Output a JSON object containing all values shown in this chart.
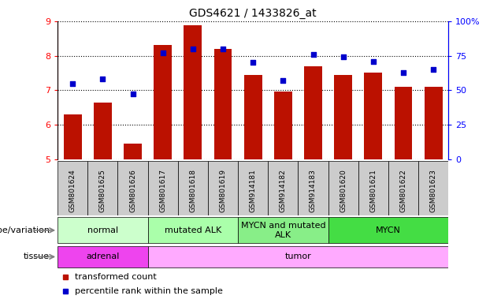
{
  "title": "GDS4621 / 1433826_at",
  "samples": [
    "GSM801624",
    "GSM801625",
    "GSM801626",
    "GSM801617",
    "GSM801618",
    "GSM801619",
    "GSM914181",
    "GSM914182",
    "GSM914183",
    "GSM801620",
    "GSM801621",
    "GSM801622",
    "GSM801623"
  ],
  "bar_values": [
    6.3,
    6.65,
    5.45,
    8.3,
    8.88,
    8.2,
    7.45,
    6.95,
    7.7,
    7.45,
    7.5,
    7.1,
    7.1
  ],
  "dot_values": [
    55,
    58,
    47,
    77,
    80,
    80,
    70,
    57,
    76,
    74,
    71,
    63,
    65
  ],
  "bar_bottom": 5.0,
  "ylim_left": [
    5,
    9
  ],
  "ylim_right": [
    0,
    100
  ],
  "yticks_left": [
    5,
    6,
    7,
    8,
    9
  ],
  "yticks_right": [
    0,
    25,
    50,
    75,
    100
  ],
  "bar_color": "#bb1100",
  "dot_color": "#0000cc",
  "genotype_groups": [
    {
      "label": "normal",
      "start": 0,
      "end": 3,
      "color": "#ccffcc"
    },
    {
      "label": "mutated ALK",
      "start": 3,
      "end": 6,
      "color": "#aaffaa"
    },
    {
      "label": "MYCN and mutated\nALK",
      "start": 6,
      "end": 9,
      "color": "#88ee88"
    },
    {
      "label": "MYCN",
      "start": 9,
      "end": 13,
      "color": "#44dd44"
    }
  ],
  "tissue_groups": [
    {
      "label": "adrenal",
      "start": 0,
      "end": 3,
      "color": "#ee44ee"
    },
    {
      "label": "tumor",
      "start": 3,
      "end": 13,
      "color": "#ffaaff"
    }
  ],
  "legend_items": [
    {
      "label": "transformed count",
      "color": "#bb1100"
    },
    {
      "label": "percentile rank within the sample",
      "color": "#0000cc"
    }
  ],
  "genotype_label": "genotype/variation",
  "tissue_label": "tissue",
  "xtick_bg": "#cccccc",
  "xtick_fontsize": 6.5,
  "label_fontsize": 8,
  "group_fontsize": 8
}
